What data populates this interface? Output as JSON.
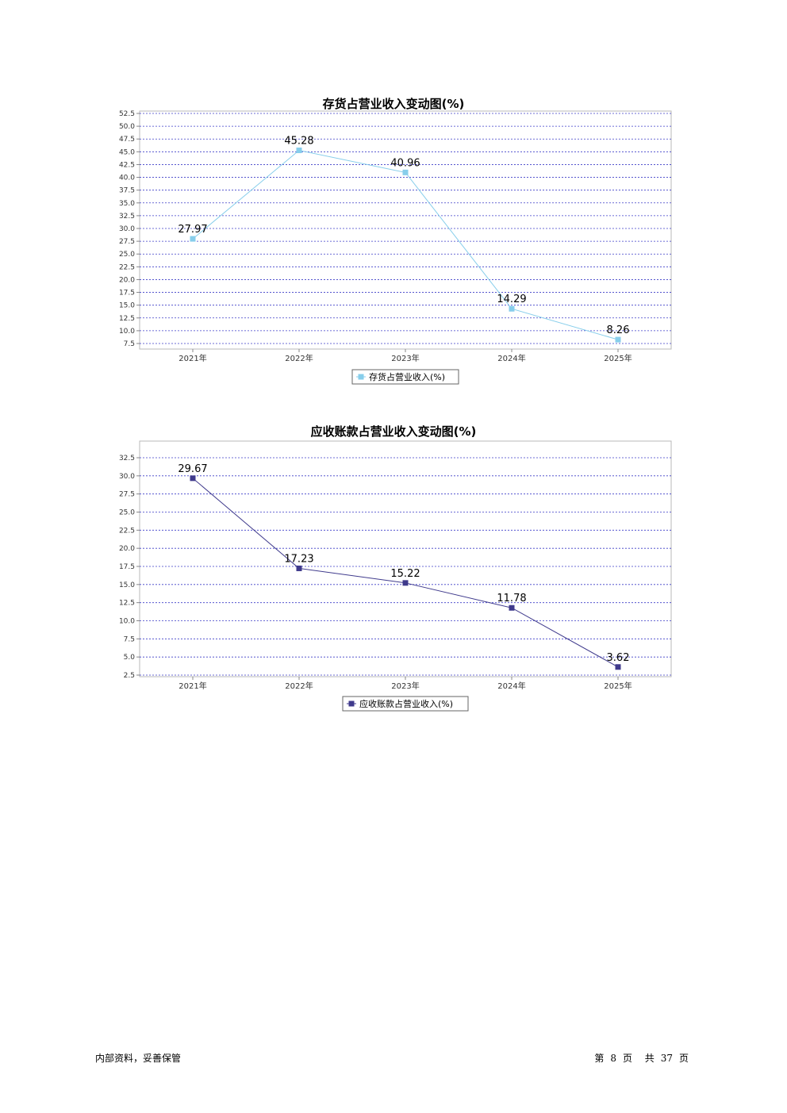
{
  "chart_data": [
    {
      "type": "line",
      "title": "存货占营业收入变动图(%)",
      "categories": [
        "2021年",
        "2022年",
        "2023年",
        "2024年",
        "2025年"
      ],
      "series": [
        {
          "name": "存货占营业收入(%)",
          "values": [
            27.97,
            45.28,
            40.96,
            14.29,
            8.26
          ],
          "color": "#87CEEB"
        }
      ],
      "ylim": [
        7.5,
        52.5
      ],
      "yticks": [
        "52.5",
        "50.0",
        "47.5",
        "45.0",
        "42.5",
        "40.0",
        "37.5",
        "35.0",
        "32.5",
        "30.0",
        "27.5",
        "25.0",
        "22.5",
        "20.0",
        "17.5",
        "15.0",
        "12.5",
        "10.0",
        "7.5"
      ],
      "grid": true,
      "legend": "bottom-center"
    },
    {
      "type": "line",
      "title": "应收账款占营业收入变动图(%)",
      "categories": [
        "2021年",
        "2022年",
        "2023年",
        "2024年",
        "2025年"
      ],
      "series": [
        {
          "name": "应收账款占营业收入(%)",
          "values": [
            29.67,
            17.23,
            15.22,
            11.78,
            3.62
          ],
          "color": "#3F3A8C"
        }
      ],
      "ylim": [
        2.5,
        32.5
      ],
      "yticks": [
        "32.5",
        "30.0",
        "27.5",
        "25.0",
        "22.5",
        "20.0",
        "17.5",
        "15.0",
        "12.5",
        "10.0",
        "7.5",
        "5.0",
        "2.5"
      ],
      "grid": true,
      "legend": "bottom-center"
    }
  ],
  "footer": {
    "left": "内部资料，妥善保管",
    "page_prefix": "第",
    "page_number": "8",
    "page_unit": "页",
    "total_prefix": "共",
    "total_pages": "37",
    "total_unit": "页"
  }
}
